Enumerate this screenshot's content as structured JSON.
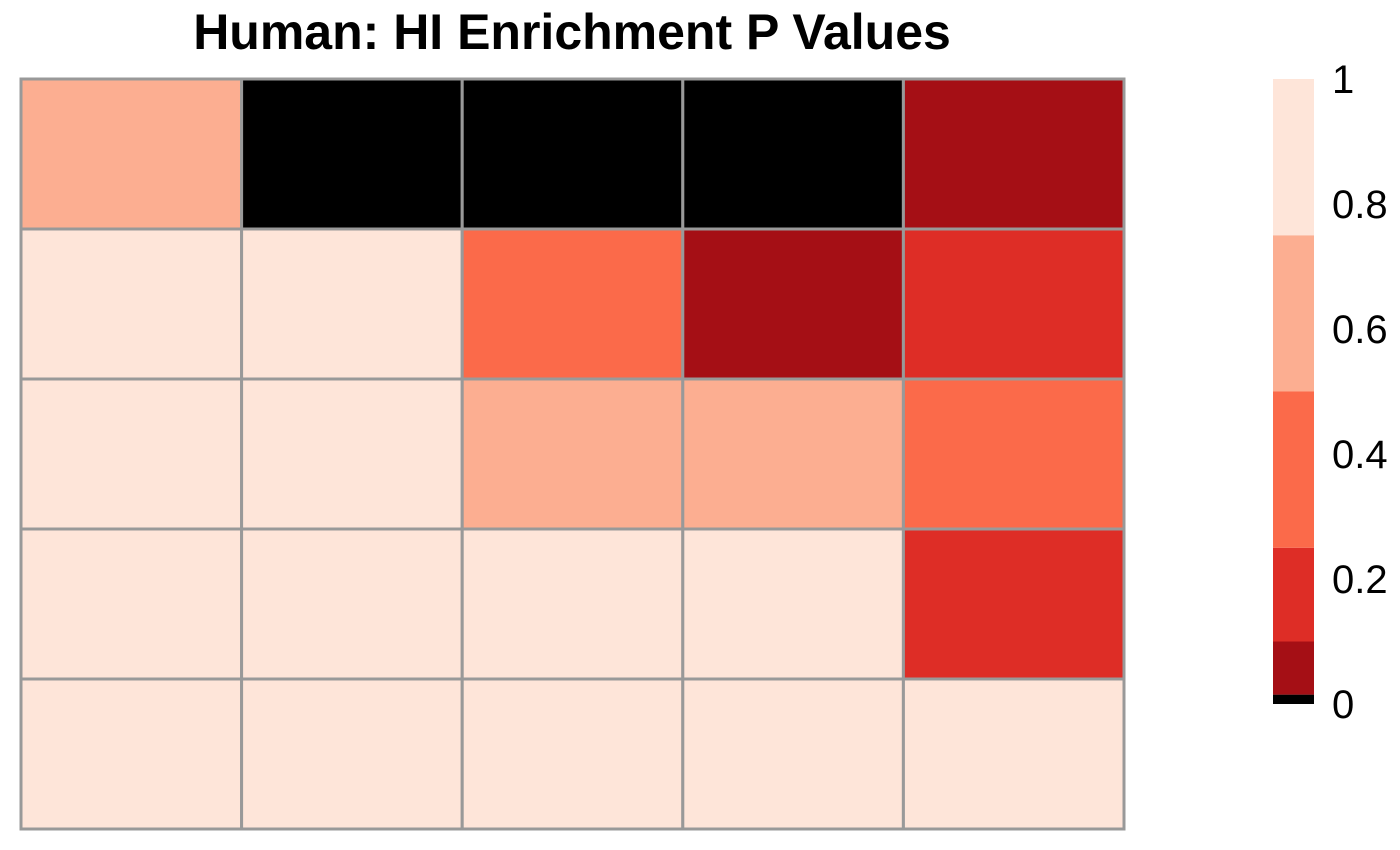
{
  "chart_data": {
    "type": "heatmap",
    "title": "Human: HI Enrichment P Values",
    "xlabel": "",
    "ylabel": "",
    "rows": 5,
    "cols": 5,
    "values": [
      [
        0.7,
        0.0,
        0.0,
        0.0,
        0.05
      ],
      [
        1.0,
        1.0,
        0.4,
        0.05,
        0.2
      ],
      [
        1.0,
        1.0,
        0.7,
        0.7,
        0.4
      ],
      [
        1.0,
        1.0,
        1.0,
        1.0,
        0.2
      ],
      [
        1.0,
        1.0,
        1.0,
        1.0,
        1.0
      ]
    ],
    "grid": true,
    "grid_color": "#999999",
    "colorscale": {
      "range": [
        0,
        1
      ],
      "bins": [
        {
          "from": 0.0,
          "to": 0.015,
          "color": "#000000"
        },
        {
          "from": 0.015,
          "to": 0.1,
          "color": "#a50f15"
        },
        {
          "from": 0.1,
          "to": 0.25,
          "color": "#de2d26"
        },
        {
          "from": 0.25,
          "to": 0.5,
          "color": "#fb6a4a"
        },
        {
          "from": 0.5,
          "to": 0.75,
          "color": "#fcae91"
        },
        {
          "from": 0.75,
          "to": 1.0,
          "color": "#fee5d9"
        }
      ],
      "ticks": [
        {
          "value": 0,
          "label": "0"
        },
        {
          "value": 0.2,
          "label": "0.2"
        },
        {
          "value": 0.4,
          "label": "0.4"
        },
        {
          "value": 0.6,
          "label": "0.6"
        },
        {
          "value": 0.8,
          "label": "0.8"
        },
        {
          "value": 1,
          "label": "1"
        }
      ]
    }
  }
}
